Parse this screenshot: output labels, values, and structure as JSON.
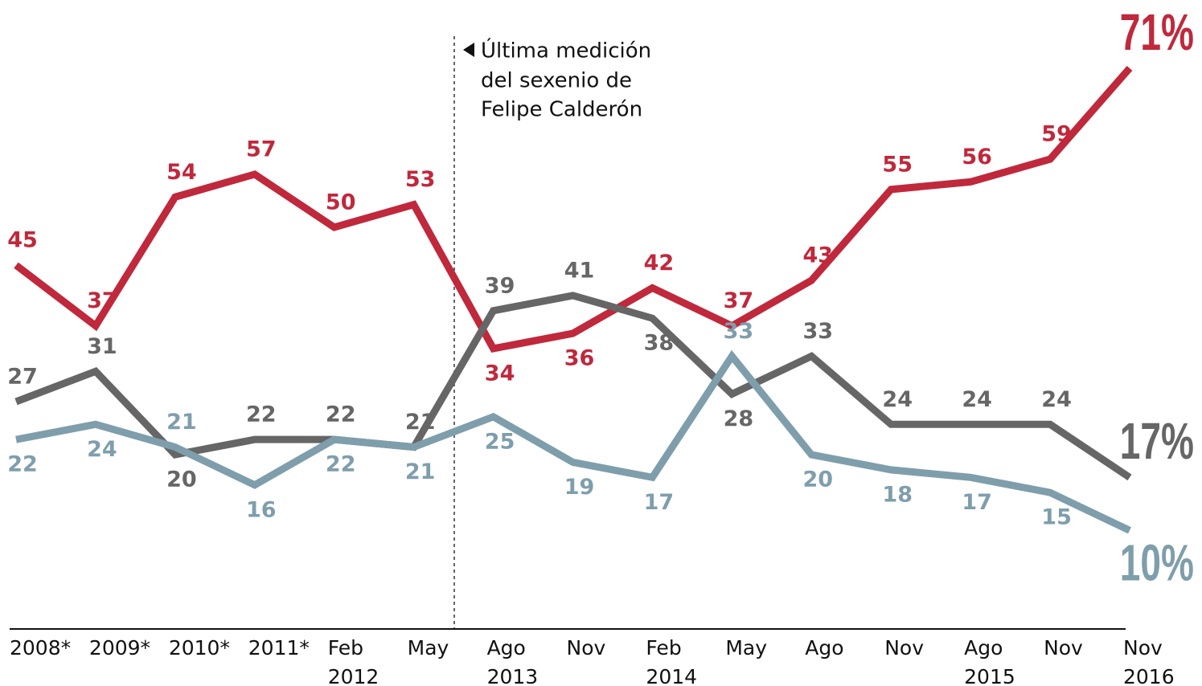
{
  "chart_data": {
    "type": "line",
    "categories": [
      "2008*",
      "2009*",
      "2010*",
      "2011*",
      "Feb 2012",
      "May",
      "Ago 2013",
      "Nov",
      "Feb 2014",
      "May",
      "Ago",
      "Nov",
      "Ago 2015",
      "Nov",
      "Nov 2016"
    ],
    "series": [
      {
        "color": "#c0283c",
        "values": [
          45,
          37,
          54,
          57,
          50,
          53,
          34,
          36,
          42,
          37,
          43,
          55,
          56,
          59,
          71
        ],
        "value_labels": [
          "45",
          "37",
          "54",
          "57",
          "50",
          "53",
          "34",
          "36",
          "42",
          "37",
          "43",
          "55",
          "56",
          "59",
          "71%"
        ]
      },
      {
        "color": "#666666",
        "values": [
          27,
          31,
          20,
          22,
          22,
          21,
          39,
          41,
          38,
          28,
          33,
          24,
          24,
          24,
          17
        ],
        "value_labels": [
          "27",
          "31",
          "20",
          "22",
          "22",
          "21",
          "39",
          "41",
          "38",
          "28",
          "33",
          "24",
          "24",
          "24",
          "17%"
        ]
      },
      {
        "color": "#7f9eac",
        "values": [
          22,
          24,
          21,
          16,
          22,
          21,
          25,
          19,
          17,
          33,
          20,
          18,
          17,
          15,
          10
        ],
        "value_labels": [
          "22",
          "24",
          "21",
          "16",
          "22",
          "21",
          "25",
          "19",
          "17",
          "33",
          "20",
          "18",
          "17",
          "15",
          "10%"
        ]
      }
    ],
    "annotation": [
      "Última medición",
      "del sexenio de",
      "Felipe Calderón"
    ],
    "ylim": [
      -3,
      80
    ]
  }
}
